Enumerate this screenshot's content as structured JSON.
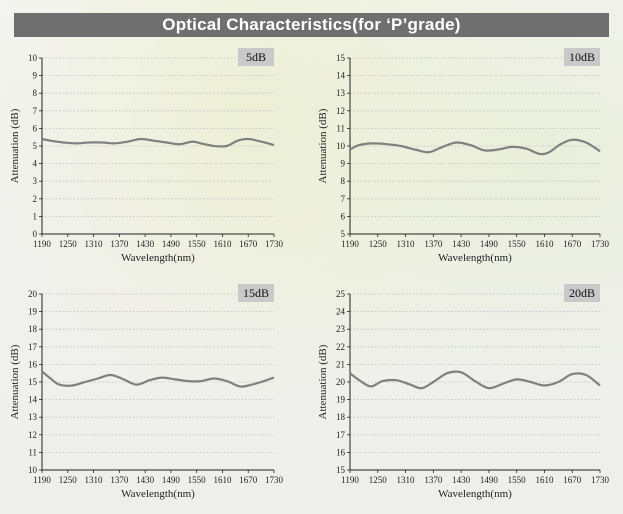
{
  "header": {
    "title": "Optical Characteristics(for ‘P’grade)"
  },
  "colors": {
    "title_bar": "#6f6f6f",
    "curve": "#808080",
    "tag_bg": "#c9c9c9",
    "axis": "#222222",
    "grid": "#bdbdbd"
  },
  "chart_data": [
    {
      "type": "line",
      "tag": "5dB",
      "xlabel": "Wavelength(nm)",
      "ylabel": "Attenuation (dB)",
      "xlim": [
        1190,
        1730
      ],
      "ylim": [
        0,
        10
      ],
      "xticks": [
        1190,
        1250,
        1310,
        1370,
        1430,
        1490,
        1550,
        1610,
        1670,
        1730
      ],
      "yticks": [
        0,
        1,
        2,
        3,
        4,
        5,
        6,
        7,
        8,
        9,
        10
      ],
      "grid": true,
      "x": [
        1190,
        1210,
        1240,
        1270,
        1300,
        1330,
        1360,
        1390,
        1420,
        1450,
        1480,
        1510,
        1540,
        1560,
        1590,
        1620,
        1645,
        1670,
        1700,
        1730
      ],
      "y": [
        5.4,
        5.3,
        5.2,
        5.15,
        5.2,
        5.2,
        5.15,
        5.25,
        5.4,
        5.3,
        5.2,
        5.1,
        5.25,
        5.15,
        5.0,
        5.0,
        5.3,
        5.4,
        5.25,
        5.05
      ]
    },
    {
      "type": "line",
      "tag": "10dB",
      "xlabel": "Wavelength(nm)",
      "ylabel": "Attenuation (dB)",
      "xlim": [
        1190,
        1730
      ],
      "ylim": [
        5,
        15
      ],
      "xticks": [
        1190,
        1250,
        1310,
        1370,
        1430,
        1490,
        1550,
        1610,
        1670,
        1730
      ],
      "yticks": [
        5,
        6,
        7,
        8,
        9,
        10,
        11,
        12,
        13,
        14,
        15
      ],
      "grid": true,
      "x": [
        1190,
        1210,
        1240,
        1270,
        1300,
        1330,
        1360,
        1390,
        1420,
        1450,
        1480,
        1510,
        1540,
        1570,
        1600,
        1620,
        1645,
        1670,
        1700,
        1730
      ],
      "y": [
        9.8,
        10.05,
        10.15,
        10.1,
        10.0,
        9.8,
        9.65,
        9.95,
        10.2,
        10.05,
        9.75,
        9.8,
        9.95,
        9.85,
        9.55,
        9.65,
        10.1,
        10.35,
        10.2,
        9.7
      ]
    },
    {
      "type": "line",
      "tag": "15dB",
      "xlabel": "Wavelength(nm)",
      "ylabel": "Attenuation (dB)",
      "xlim": [
        1190,
        1730
      ],
      "ylim": [
        10,
        20
      ],
      "xticks": [
        1190,
        1250,
        1310,
        1370,
        1430,
        1490,
        1550,
        1610,
        1670,
        1730
      ],
      "yticks": [
        10,
        11,
        12,
        13,
        14,
        15,
        16,
        17,
        18,
        19,
        20
      ],
      "grid": true,
      "x": [
        1190,
        1210,
        1230,
        1260,
        1290,
        1320,
        1350,
        1380,
        1410,
        1440,
        1470,
        1500,
        1530,
        1560,
        1590,
        1620,
        1650,
        1670,
        1700,
        1730
      ],
      "y": [
        15.6,
        15.2,
        14.85,
        14.8,
        15.0,
        15.2,
        15.4,
        15.15,
        14.85,
        15.1,
        15.25,
        15.15,
        15.05,
        15.05,
        15.2,
        15.05,
        14.75,
        14.8,
        15.0,
        15.25
      ]
    },
    {
      "type": "line",
      "tag": "20dB",
      "xlabel": "Wavelength(nm)",
      "ylabel": "Attenuation (dB)",
      "xlim": [
        1190,
        1730
      ],
      "ylim": [
        15,
        25
      ],
      "xticks": [
        1190,
        1250,
        1310,
        1370,
        1430,
        1490,
        1550,
        1610,
        1670,
        1730
      ],
      "yticks": [
        15,
        16,
        17,
        18,
        19,
        20,
        21,
        22,
        23,
        24,
        25
      ],
      "grid": true,
      "x": [
        1190,
        1210,
        1235,
        1260,
        1290,
        1320,
        1345,
        1370,
        1400,
        1430,
        1460,
        1490,
        1520,
        1550,
        1580,
        1610,
        1640,
        1670,
        1700,
        1730
      ],
      "y": [
        20.5,
        20.1,
        19.75,
        20.05,
        20.1,
        19.85,
        19.65,
        20.0,
        20.5,
        20.55,
        20.05,
        19.65,
        19.9,
        20.15,
        20.0,
        19.8,
        20.0,
        20.45,
        20.4,
        19.8
      ]
    }
  ]
}
